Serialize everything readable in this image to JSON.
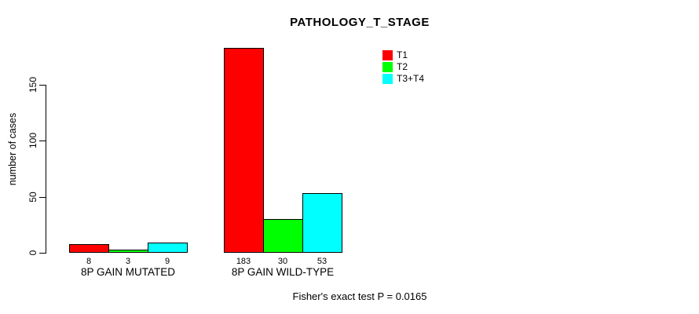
{
  "chart_data": {
    "type": "bar",
    "title": "PATHOLOGY_T_STAGE",
    "xlabel": "",
    "ylabel": "number of cases",
    "ylim": [
      0,
      183
    ],
    "yticks": [
      0,
      50,
      100,
      150
    ],
    "grid": false,
    "legend_position": "top-right",
    "categories": [
      "8P GAIN MUTATED",
      "8P GAIN WILD-TYPE"
    ],
    "series": [
      {
        "name": "T1",
        "color": "#ff0000",
        "values": [
          8,
          183
        ]
      },
      {
        "name": "T2",
        "color": "#00ff00",
        "values": [
          3,
          30
        ]
      },
      {
        "name": "T3+T4",
        "color": "#00ffff",
        "values": [
          9,
          53
        ]
      }
    ],
    "bar_value_labels": [
      [
        "8",
        "3",
        "9"
      ],
      [
        "183",
        "30",
        "53"
      ]
    ],
    "annotation": "Fisher's exact test P = 0.0165"
  },
  "colors": {
    "background": "#ffffff",
    "axis": "#000000",
    "bar_border": "#000000",
    "text": "#000000"
  }
}
